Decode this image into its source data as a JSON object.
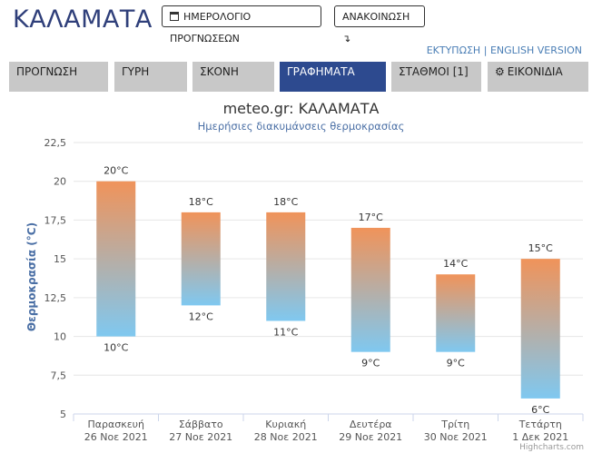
{
  "header": {
    "title": "ΚΑΛΑΜΑΤΑ",
    "calendar_button": "ΗΜΕΡΟΛΟΓΙΟ ΠΡΟΓΝΩΣΕΩΝ",
    "announcement_button": "ΑΝΑΚΟΙΝΩΣΗ ↴",
    "print_link": "ΕΚΤΥΠΩΣΗ",
    "separator": "|",
    "english_link": "ENGLISH VERSION"
  },
  "tabs": [
    {
      "label": "ΠΡΟΓΝΩΣΗ",
      "active": false
    },
    {
      "label": "ΓΥΡΗ",
      "active": false
    },
    {
      "label": "ΣΚΟΝΗ",
      "active": false
    },
    {
      "label": "ΓΡΑΦΗΜΑΤΑ",
      "active": true
    },
    {
      "label": "ΣΤΑΘΜΟΙ [1]",
      "active": false
    },
    {
      "label": "ΕΙΚΟΝΙΔΙΑ",
      "active": false,
      "icon": "gear-icon"
    }
  ],
  "chart_data": {
    "type": "bar",
    "title": "meteo.gr: ΚΑΛΑΜΑΤΑ",
    "subtitle": "Ημερήσιες διακυμάνσεις θερμοκρασίας",
    "ylabel": "Θερμοκρασία (°C)",
    "ylim": [
      5,
      22.5
    ],
    "yticks": [
      "22,5",
      "20",
      "17,5",
      "15",
      "12,5",
      "10",
      "7,5",
      "5"
    ],
    "ytick_values": [
      22.5,
      20,
      17.5,
      15,
      12.5,
      10,
      7.5,
      5
    ],
    "categories": [
      {
        "day": "Παρασκευή",
        "date": "26 Νοε 2021"
      },
      {
        "day": "Σάββατο",
        "date": "27 Νοε 2021"
      },
      {
        "day": "Κυριακή",
        "date": "28 Νοε 2021"
      },
      {
        "day": "Δευτέρα",
        "date": "29 Νοε 2021"
      },
      {
        "day": "Τρίτη",
        "date": "30 Νοε 2021"
      },
      {
        "day": "Τετάρτη",
        "date": "1 Δεκ 2021"
      }
    ],
    "series": [
      {
        "low": 10,
        "high": 20,
        "low_label": "10°C",
        "high_label": "20°C"
      },
      {
        "low": 12,
        "high": 18,
        "low_label": "12°C",
        "high_label": "18°C"
      },
      {
        "low": 11,
        "high": 18,
        "low_label": "11°C",
        "high_label": "18°C"
      },
      {
        "low": 9,
        "high": 17,
        "low_label": "9°C",
        "high_label": "17°C"
      },
      {
        "low": 9,
        "high": 14,
        "low_label": "9°C",
        "high_label": "14°C"
      },
      {
        "low": 6,
        "high": 15,
        "low_label": "6°C",
        "high_label": "15°C"
      }
    ],
    "colors": {
      "warm": "#f0935a",
      "cool": "#7fc8f0",
      "grid": "#e6e6e6",
      "axis_label": "#4a6fa5"
    },
    "grid": true,
    "credit": "Highcharts.com"
  }
}
